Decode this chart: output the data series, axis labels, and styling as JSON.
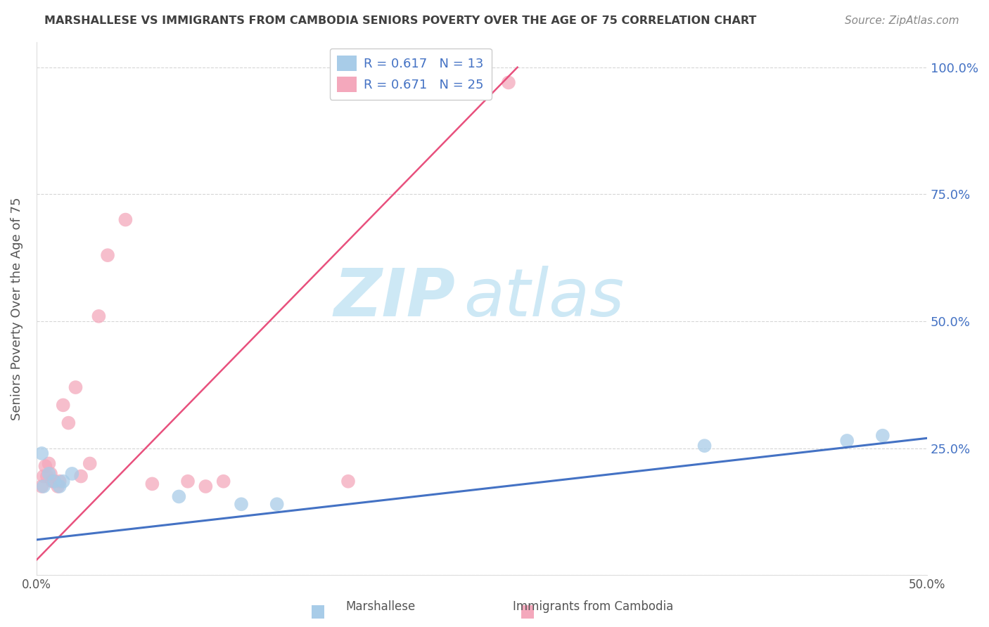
{
  "title": "MARSHALLESE VS IMMIGRANTS FROM CAMBODIA SENIORS POVERTY OVER THE AGE OF 75 CORRELATION CHART",
  "source": "Source: ZipAtlas.com",
  "xlabel_marshallese": "Marshallese",
  "xlabel_cambodia": "Immigrants from Cambodia",
  "ylabel": "Seniors Poverty Over the Age of 75",
  "xlim": [
    0.0,
    0.5
  ],
  "ylim": [
    0.0,
    1.05
  ],
  "blue_scatter": [
    [
      0.003,
      0.24
    ],
    [
      0.004,
      0.175
    ],
    [
      0.007,
      0.2
    ],
    [
      0.01,
      0.185
    ],
    [
      0.013,
      0.175
    ],
    [
      0.015,
      0.185
    ],
    [
      0.02,
      0.2
    ],
    [
      0.08,
      0.155
    ],
    [
      0.115,
      0.14
    ],
    [
      0.135,
      0.14
    ],
    [
      0.375,
      0.255
    ],
    [
      0.455,
      0.265
    ],
    [
      0.475,
      0.275
    ]
  ],
  "pink_scatter": [
    [
      0.003,
      0.175
    ],
    [
      0.004,
      0.195
    ],
    [
      0.005,
      0.215
    ],
    [
      0.006,
      0.195
    ],
    [
      0.007,
      0.22
    ],
    [
      0.008,
      0.2
    ],
    [
      0.009,
      0.185
    ],
    [
      0.01,
      0.185
    ],
    [
      0.012,
      0.175
    ],
    [
      0.013,
      0.185
    ],
    [
      0.015,
      0.335
    ],
    [
      0.018,
      0.3
    ],
    [
      0.022,
      0.37
    ],
    [
      0.025,
      0.195
    ],
    [
      0.03,
      0.22
    ],
    [
      0.035,
      0.51
    ],
    [
      0.04,
      0.63
    ],
    [
      0.05,
      0.7
    ],
    [
      0.065,
      0.18
    ],
    [
      0.085,
      0.185
    ],
    [
      0.095,
      0.175
    ],
    [
      0.105,
      0.185
    ],
    [
      0.175,
      0.185
    ],
    [
      0.245,
      0.965
    ],
    [
      0.265,
      0.97
    ]
  ],
  "blue_color": "#a8cce8",
  "pink_color": "#f4a8bc",
  "blue_line_color": "#4472c4",
  "pink_line_color": "#e8507d",
  "background_color": "#ffffff",
  "grid_color": "#cccccc",
  "watermark_zip": "ZIP",
  "watermark_atlas": "atlas",
  "watermark_color": "#cde8f5",
  "title_color": "#404040",
  "axis_label_color": "#555555",
  "right_tick_color": "#4472c4",
  "source_color": "#888888",
  "legend_r1": "R = 0.617",
  "legend_n1": "N = 13",
  "legend_r2": "R = 0.671",
  "legend_n2": "N = 25"
}
